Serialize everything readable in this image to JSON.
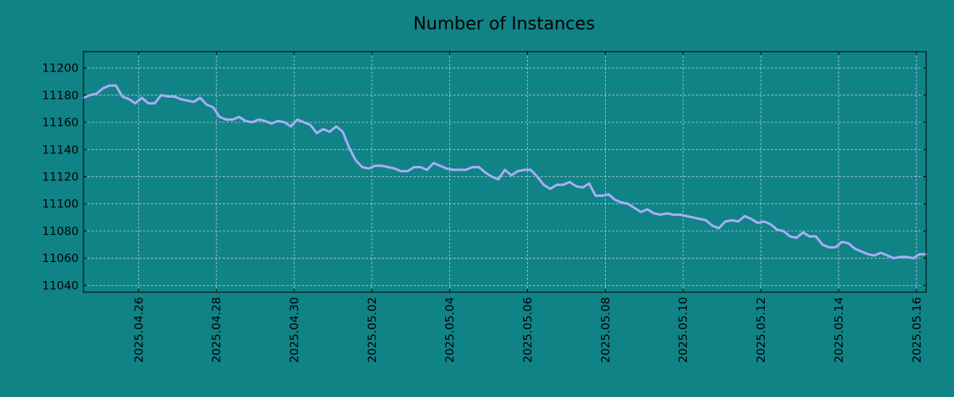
{
  "chart_data": {
    "type": "line",
    "title": "Number of Instances",
    "xlabel": "",
    "ylabel": "",
    "xlim": [
      "2025-04-24T14:00",
      "2025-05-16T06:00"
    ],
    "ylim": [
      11035,
      11212
    ],
    "yticks": [
      11040,
      11060,
      11080,
      11100,
      11120,
      11140,
      11160,
      11180,
      11200
    ],
    "xticks": [
      "2025.04.26",
      "2025.04.28",
      "2025.04.30",
      "2025.05.02",
      "2025.05.04",
      "2025.05.06",
      "2025.05.08",
      "2025.05.10",
      "2025.05.12",
      "2025.05.14",
      "2025.05.16"
    ],
    "grid": true,
    "colors": {
      "background": "#108387",
      "line": "#a9adf7",
      "grid": "#c8dcdc"
    },
    "series": [
      {
        "x": [
          "2025-04-24T14:00",
          "2025-04-24T18:00",
          "2025-04-24T22:00",
          "2025-04-25T02:00",
          "2025-04-25T06:00",
          "2025-04-25T10:00",
          "2025-04-25T14:00",
          "2025-04-25T18:00",
          "2025-04-25T22:00",
          "2025-04-26T02:00",
          "2025-04-26T06:00",
          "2025-04-26T10:00",
          "2025-04-26T14:00",
          "2025-04-26T18:00",
          "2025-04-26T22:00",
          "2025-04-27T02:00",
          "2025-04-27T06:00",
          "2025-04-27T10:00",
          "2025-04-27T14:00",
          "2025-04-27T18:00",
          "2025-04-27T22:00",
          "2025-04-28T02:00",
          "2025-04-28T06:00",
          "2025-04-28T10:00",
          "2025-04-28T14:00",
          "2025-04-28T18:00",
          "2025-04-28T22:00",
          "2025-04-29T02:00",
          "2025-04-29T06:00",
          "2025-04-29T10:00",
          "2025-04-29T14:00",
          "2025-04-29T18:00",
          "2025-04-29T22:00",
          "2025-04-30T02:00",
          "2025-04-30T06:00",
          "2025-04-30T10:00",
          "2025-04-30T14:00",
          "2025-04-30T18:00",
          "2025-04-30T22:00",
          "2025-05-01T02:00",
          "2025-05-01T06:00",
          "2025-05-01T10:00",
          "2025-05-01T14:00",
          "2025-05-01T18:00",
          "2025-05-01T22:00",
          "2025-05-02T02:00",
          "2025-05-02T06:00",
          "2025-05-02T10:00",
          "2025-05-02T14:00",
          "2025-05-02T18:00",
          "2025-05-02T22:00",
          "2025-05-03T02:00",
          "2025-05-03T06:00",
          "2025-05-03T10:00",
          "2025-05-03T14:00",
          "2025-05-03T18:00",
          "2025-05-03T22:00",
          "2025-05-04T02:00",
          "2025-05-04T06:00",
          "2025-05-04T10:00",
          "2025-05-04T14:00",
          "2025-05-04T18:00",
          "2025-05-04T22:00",
          "2025-05-05T02:00",
          "2025-05-05T06:00",
          "2025-05-05T10:00",
          "2025-05-05T14:00",
          "2025-05-05T18:00",
          "2025-05-05T22:00",
          "2025-05-06T02:00",
          "2025-05-06T06:00",
          "2025-05-06T10:00",
          "2025-05-06T14:00",
          "2025-05-06T18:00",
          "2025-05-06T22:00",
          "2025-05-07T02:00",
          "2025-05-07T06:00",
          "2025-05-07T10:00",
          "2025-05-07T14:00",
          "2025-05-07T18:00",
          "2025-05-07T22:00",
          "2025-05-08T02:00",
          "2025-05-08T06:00",
          "2025-05-08T10:00",
          "2025-05-08T14:00",
          "2025-05-08T18:00",
          "2025-05-08T22:00",
          "2025-05-09T02:00",
          "2025-05-09T06:00",
          "2025-05-09T10:00",
          "2025-05-09T14:00",
          "2025-05-09T18:00",
          "2025-05-09T22:00",
          "2025-05-10T02:00",
          "2025-05-10T06:00",
          "2025-05-10T10:00",
          "2025-05-10T14:00",
          "2025-05-10T18:00",
          "2025-05-10T22:00",
          "2025-05-11T02:00",
          "2025-05-11T06:00",
          "2025-05-11T10:00",
          "2025-05-11T14:00",
          "2025-05-11T18:00",
          "2025-05-11T22:00",
          "2025-05-12T02:00",
          "2025-05-12T06:00",
          "2025-05-12T10:00",
          "2025-05-12T14:00",
          "2025-05-12T18:00",
          "2025-05-12T22:00",
          "2025-05-13T02:00",
          "2025-05-13T06:00",
          "2025-05-13T10:00",
          "2025-05-13T14:00",
          "2025-05-13T18:00",
          "2025-05-13T22:00",
          "2025-05-14T02:00",
          "2025-05-14T06:00",
          "2025-05-14T10:00",
          "2025-05-14T14:00",
          "2025-05-14T18:00",
          "2025-05-14T22:00",
          "2025-05-15T02:00",
          "2025-05-15T06:00",
          "2025-05-15T10:00",
          "2025-05-15T14:00",
          "2025-05-15T18:00",
          "2025-05-15T22:00",
          "2025-05-16T02:00",
          "2025-05-16T06:00"
        ],
        "y": [
          11178,
          11180,
          11181,
          11185,
          11187,
          11187,
          11179,
          11177,
          11174,
          11178,
          11174,
          11174,
          11180,
          11179,
          11179,
          11177,
          11176,
          11175,
          11178,
          11173,
          11171,
          11164,
          11162,
          11162,
          11164,
          11161,
          11160,
          11162,
          11161,
          11159,
          11161,
          11160,
          11157,
          11162,
          11160,
          11158,
          11152,
          11155,
          11153,
          11157,
          11153,
          11141,
          11132,
          11127,
          11126,
          11128,
          11128,
          11127,
          11126,
          11124,
          11124,
          11127,
          11127,
          11125,
          11130,
          11128,
          11126,
          11125,
          11125,
          11125,
          11127,
          11127,
          11123,
          11120,
          11118,
          11125,
          11121,
          11124,
          11125,
          11125,
          11120,
          11114,
          11111,
          11114,
          11114,
          11116,
          11113,
          11112,
          11115,
          11106,
          11106,
          11107,
          11103,
          11101,
          11100,
          11097,
          11094,
          11096,
          11093,
          11092,
          11093,
          11092,
          11092,
          11091,
          11090,
          11089,
          11088,
          11084,
          11082,
          11087,
          11088,
          11087,
          11091,
          11089,
          11086,
          11087,
          11085,
          11081,
          11080,
          11076,
          11075,
          11079,
          11076,
          11076,
          11070,
          11068,
          11068,
          11072,
          11071,
          11067,
          11065,
          11063,
          11062,
          11064,
          11062,
          11060,
          11061,
          11061,
          11060,
          11063,
          11063
        ]
      }
    ]
  }
}
